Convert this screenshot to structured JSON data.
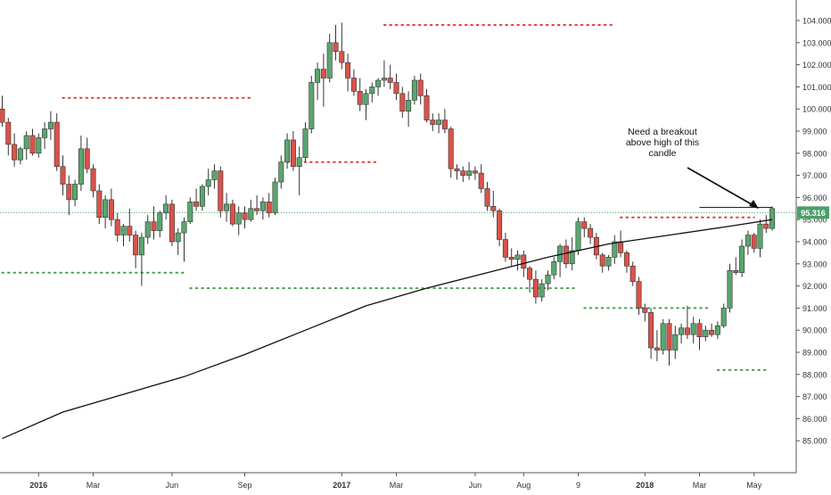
{
  "chart_data": {
    "type": "candlestick",
    "title": "",
    "xlabel": "",
    "ylabel": "",
    "ylim": [
      84.3,
      104.5
    ],
    "y_ticks": [
      "85.000",
      "86.000",
      "87.000",
      "88.000",
      "89.000",
      "90.000",
      "91.000",
      "92.000",
      "93.000",
      "94.000",
      "95.000",
      "96.000",
      "97.000",
      "98.000",
      "99.000",
      "100.000",
      "101.000",
      "102.000",
      "103.000",
      "104.000"
    ],
    "x_tick_labels": [
      "2016",
      "Mar",
      "Jun",
      "Sep",
      "2017",
      "Mar",
      "Jun",
      "Aug",
      "9",
      "2018",
      "Mar",
      "May"
    ],
    "x_tick_weeks": [
      6,
      15,
      28,
      40,
      56,
      65,
      78,
      86,
      95,
      106,
      115,
      124
    ],
    "x_bold_labels": [
      "2016",
      "2017",
      "2018"
    ],
    "grid": false,
    "current_price": "95.316",
    "candles": [
      [
        100.0,
        100.6,
        99.2,
        99.4
      ],
      [
        99.4,
        99.6,
        97.9,
        98.4
      ],
      [
        98.4,
        98.9,
        97.4,
        97.7
      ],
      [
        97.7,
        98.3,
        97.5,
        98.2
      ],
      [
        98.2,
        99.0,
        97.7,
        98.8
      ],
      [
        98.8,
        99.1,
        97.9,
        98.0
      ],
      [
        98.0,
        98.9,
        97.8,
        98.7
      ],
      [
        98.7,
        99.4,
        98.2,
        99.1
      ],
      [
        99.1,
        99.9,
        98.6,
        99.4
      ],
      [
        99.4,
        99.8,
        97.2,
        97.4
      ],
      [
        97.4,
        97.9,
        96.1,
        96.6
      ],
      [
        96.6,
        97.0,
        95.2,
        95.9
      ],
      [
        95.9,
        96.8,
        95.6,
        96.6
      ],
      [
        96.6,
        98.8,
        96.3,
        98.2
      ],
      [
        98.2,
        98.7,
        97.1,
        97.3
      ],
      [
        97.3,
        97.5,
        96.0,
        96.3
      ],
      [
        96.3,
        96.6,
        94.8,
        95.1
      ],
      [
        95.1,
        96.1,
        94.6,
        95.9
      ],
      [
        95.9,
        96.4,
        94.7,
        95.0
      ],
      [
        95.0,
        95.3,
        94.0,
        94.3
      ],
      [
        94.3,
        94.8,
        93.8,
        94.7
      ],
      [
        94.7,
        95.5,
        94.0,
        94.3
      ],
      [
        94.3,
        94.5,
        92.8,
        93.4
      ],
      [
        93.4,
        94.4,
        92.0,
        94.2
      ],
      [
        94.2,
        95.2,
        93.9,
        94.9
      ],
      [
        94.9,
        95.6,
        94.1,
        94.5
      ],
      [
        94.5,
        95.4,
        94.2,
        95.3
      ],
      [
        95.3,
        96.1,
        95.0,
        95.7
      ],
      [
        95.7,
        95.9,
        93.8,
        94.0
      ],
      [
        94.0,
        94.6,
        93.4,
        94.4
      ],
      [
        94.4,
        95.1,
        93.1,
        94.9
      ],
      [
        94.9,
        96.0,
        94.8,
        95.8
      ],
      [
        95.8,
        96.4,
        95.4,
        95.6
      ],
      [
        95.6,
        96.6,
        95.4,
        96.5
      ],
      [
        96.5,
        97.3,
        96.1,
        96.8
      ],
      [
        96.8,
        97.5,
        96.4,
        97.2
      ],
      [
        97.2,
        97.4,
        95.1,
        95.4
      ],
      [
        95.4,
        96.2,
        94.9,
        95.7
      ],
      [
        95.7,
        95.9,
        94.7,
        94.8
      ],
      [
        94.8,
        95.6,
        94.3,
        95.3
      ],
      [
        95.3,
        95.6,
        94.6,
        95.0
      ],
      [
        95.0,
        95.9,
        94.9,
        95.5
      ],
      [
        95.5,
        96.1,
        95.2,
        95.4
      ],
      [
        95.4,
        96.0,
        95.0,
        95.8
      ],
      [
        95.8,
        96.2,
        95.1,
        95.3
      ],
      [
        95.3,
        96.9,
        95.2,
        96.7
      ],
      [
        96.7,
        97.9,
        96.4,
        97.6
      ],
      [
        97.6,
        98.9,
        97.3,
        98.6
      ],
      [
        98.6,
        99.0,
        97.2,
        97.4
      ],
      [
        97.4,
        98.3,
        96.1,
        97.8
      ],
      [
        97.8,
        99.4,
        97.6,
        99.1
      ],
      [
        99.1,
        101.5,
        98.9,
        101.2
      ],
      [
        101.2,
        102.1,
        100.4,
        101.8
      ],
      [
        101.8,
        102.5,
        100.1,
        101.4
      ],
      [
        101.4,
        103.4,
        101.2,
        103.0
      ],
      [
        103.0,
        103.8,
        102.2,
        102.6
      ],
      [
        102.6,
        103.9,
        101.8,
        102.1
      ],
      [
        102.1,
        102.5,
        100.8,
        101.4
      ],
      [
        101.4,
        101.8,
        100.6,
        100.8
      ],
      [
        100.8,
        101.4,
        99.9,
        100.2
      ],
      [
        100.2,
        100.9,
        99.5,
        100.7
      ],
      [
        100.7,
        101.2,
        100.3,
        101.0
      ],
      [
        101.0,
        101.4,
        100.6,
        101.3
      ],
      [
        101.3,
        102.2,
        101.0,
        101.4
      ],
      [
        101.4,
        102.0,
        100.9,
        101.2
      ],
      [
        101.2,
        101.6,
        100.4,
        100.7
      ],
      [
        100.7,
        101.0,
        99.6,
        99.9
      ],
      [
        99.9,
        100.8,
        99.2,
        100.4
      ],
      [
        100.4,
        101.5,
        100.2,
        101.3
      ],
      [
        101.3,
        101.6,
        100.2,
        100.6
      ],
      [
        100.6,
        100.9,
        99.4,
        99.5
      ],
      [
        99.5,
        99.8,
        99.0,
        99.3
      ],
      [
        99.3,
        99.8,
        98.9,
        99.5
      ],
      [
        99.5,
        100.0,
        98.9,
        99.1
      ],
      [
        99.1,
        99.2,
        96.9,
        97.3
      ],
      [
        97.3,
        97.5,
        96.8,
        97.2
      ],
      [
        97.2,
        97.4,
        96.7,
        97.0
      ],
      [
        97.0,
        97.6,
        96.8,
        97.2
      ],
      [
        97.2,
        97.4,
        96.8,
        97.1
      ],
      [
        97.1,
        97.5,
        96.2,
        96.4
      ],
      [
        96.4,
        96.7,
        95.4,
        95.6
      ],
      [
        95.6,
        96.3,
        95.1,
        95.4
      ],
      [
        95.4,
        95.5,
        93.8,
        94.1
      ],
      [
        94.1,
        94.4,
        93.1,
        93.3
      ],
      [
        93.3,
        93.7,
        92.9,
        93.2
      ],
      [
        93.2,
        93.6,
        92.7,
        93.4
      ],
      [
        93.4,
        93.6,
        92.4,
        92.8
      ],
      [
        92.8,
        92.9,
        91.7,
        92.3
      ],
      [
        92.3,
        92.7,
        91.2,
        91.5
      ],
      [
        91.5,
        92.3,
        91.3,
        92.1
      ],
      [
        92.1,
        92.7,
        91.8,
        92.5
      ],
      [
        92.5,
        93.3,
        92.3,
        93.1
      ],
      [
        93.1,
        93.9,
        92.4,
        93.8
      ],
      [
        93.8,
        94.1,
        92.8,
        93.0
      ],
      [
        93.0,
        94.2,
        92.7,
        93.6
      ],
      [
        93.6,
        95.1,
        93.4,
        94.9
      ],
      [
        94.9,
        95.1,
        94.2,
        94.6
      ],
      [
        94.6,
        94.8,
        93.9,
        94.2
      ],
      [
        94.2,
        94.4,
        93.2,
        93.4
      ],
      [
        93.4,
        93.5,
        92.6,
        92.9
      ],
      [
        92.9,
        93.4,
        92.7,
        93.3
      ],
      [
        93.3,
        94.3,
        93.0,
        94.0
      ],
      [
        94.0,
        94.5,
        93.3,
        93.5
      ],
      [
        93.5,
        93.6,
        92.6,
        92.9
      ],
      [
        92.9,
        93.1,
        92.0,
        92.2
      ],
      [
        92.2,
        92.4,
        90.7,
        91.0
      ],
      [
        91.0,
        91.2,
        90.4,
        90.8
      ],
      [
        90.8,
        91.0,
        88.7,
        89.2
      ],
      [
        89.2,
        90.0,
        88.6,
        89.1
      ],
      [
        89.1,
        90.5,
        88.9,
        90.3
      ],
      [
        90.3,
        90.5,
        88.4,
        89.1
      ],
      [
        89.1,
        90.2,
        88.7,
        89.8
      ],
      [
        89.8,
        90.3,
        89.4,
        90.1
      ],
      [
        90.1,
        91.1,
        89.6,
        89.8
      ],
      [
        89.8,
        90.6,
        89.4,
        90.3
      ],
      [
        90.3,
        90.5,
        89.1,
        89.7
      ],
      [
        89.7,
        90.2,
        89.5,
        90.0
      ],
      [
        90.0,
        90.3,
        89.7,
        89.8
      ],
      [
        89.8,
        90.4,
        89.6,
        90.2
      ],
      [
        90.2,
        91.2,
        90.1,
        91.0
      ],
      [
        91.0,
        93.0,
        90.8,
        92.7
      ],
      [
        92.7,
        93.3,
        92.5,
        92.6
      ],
      [
        92.6,
        94.1,
        92.4,
        93.8
      ],
      [
        93.8,
        94.5,
        93.4,
        94.3
      ],
      [
        94.3,
        94.4,
        93.5,
        93.7
      ],
      [
        93.7,
        95.0,
        93.3,
        94.8
      ],
      [
        94.8,
        95.2,
        94.4,
        94.6
      ],
      [
        94.6,
        95.6,
        94.5,
        95.5
      ]
    ],
    "series": [
      {
        "name": "",
        "type": "line",
        "weeks": [
          0,
          10,
          20,
          30,
          40,
          50,
          60,
          70,
          80,
          90,
          100,
          110,
          120,
          127
        ],
        "values": [
          85.1,
          86.3,
          87.1,
          87.9,
          88.9,
          90.0,
          91.1,
          91.9,
          92.6,
          93.3,
          93.9,
          94.3,
          94.7,
          95.0
        ]
      }
    ],
    "levels": [
      {
        "kind": "resistance",
        "price": 103.8,
        "from_week": 63,
        "to_week": 101
      },
      {
        "kind": "resistance",
        "price": 100.5,
        "from_week": 10,
        "to_week": 41
      },
      {
        "kind": "resistance",
        "price": 97.6,
        "from_week": 47,
        "to_week": 62
      },
      {
        "kind": "resistance",
        "price": 95.1,
        "from_week": 102,
        "to_week": 124
      },
      {
        "kind": "support",
        "price": 92.6,
        "from_week": 0,
        "to_week": 30
      },
      {
        "kind": "support",
        "price": 91.9,
        "from_week": 31,
        "to_week": 95
      },
      {
        "kind": "support",
        "price": 91.0,
        "from_week": 96,
        "to_week": 117
      },
      {
        "kind": "support",
        "price": 88.2,
        "from_week": 118,
        "to_week": 126
      }
    ],
    "breakout_line": {
      "price": 95.55,
      "from_week": 115,
      "to_week": 127
    },
    "current_price_line": {
      "price": 95.316
    },
    "annotation": {
      "lines": [
        "Need a breakout",
        "above high of this",
        "candle"
      ]
    },
    "colors": {
      "up": "#5aa66e",
      "down": "#d9534a",
      "resistance": "#e53935",
      "support": "#43a047",
      "line": "#111111",
      "current_price": "#4aa06a",
      "axis_text": "#333333"
    }
  }
}
